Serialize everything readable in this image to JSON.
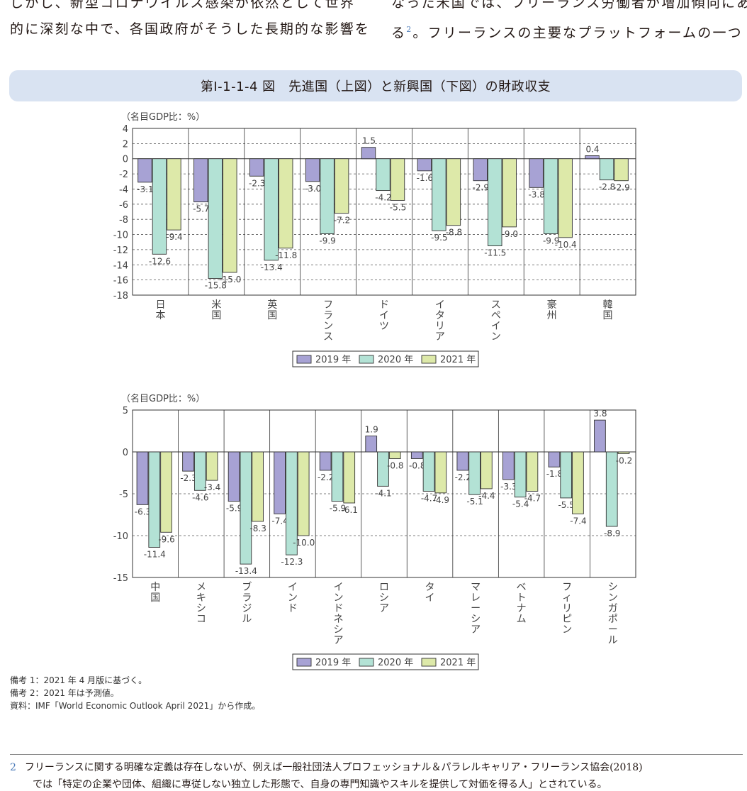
{
  "intro": {
    "left_lines": [
      "しかし、新型コロナウイルス感染が依然として世界",
      "的に深刻な中で、各国政府がそうした長期的な影響を"
    ],
    "right_line1": "なった米国では、フリーランス労働者が増加傾向にあ",
    "right_line2_pre": "る",
    "right_line2_sup": "2",
    "right_line2_post": "。フリーランスの主要なプラットフォームの一つ"
  },
  "figure_title": "第Ⅰ-1-1-4 図　先進国（上図）と新興国（下図）の財政収支",
  "colors": {
    "2019": "#a7a2d4",
    "2020": "#b3e2d5",
    "2021": "#dde9a9",
    "title_bg": "#d9e3f2"
  },
  "chart_data": [
    {
      "type": "bar",
      "ylabel": "（名目GDP比：%）",
      "ylim": [
        -18,
        4
      ],
      "yticks": [
        4,
        2,
        0,
        -2,
        -4,
        -6,
        -8,
        -10,
        -12,
        -14,
        -16,
        -18
      ],
      "grid": true,
      "categories": [
        "日本",
        "米国",
        "英国",
        "フランス",
        "ドイツ",
        "イタリア",
        "スペイン",
        "豪州",
        "韓国"
      ],
      "series": [
        {
          "name": "2019 年",
          "values": [
            -3.1,
            -5.7,
            -2.3,
            -3.0,
            1.5,
            -1.6,
            -2.9,
            -3.8,
            0.4
          ]
        },
        {
          "name": "2020 年",
          "values": [
            -12.6,
            -15.8,
            -13.4,
            -9.9,
            -4.2,
            -9.5,
            -11.5,
            -9.9,
            -2.8
          ]
        },
        {
          "name": "2021 年",
          "values": [
            -9.4,
            -15.0,
            -11.8,
            -7.2,
            -5.5,
            -8.8,
            -9.0,
            -10.4,
            -2.9
          ]
        }
      ],
      "legend": "bottom-center"
    },
    {
      "type": "bar",
      "ylabel": "（名目GDP比：%）",
      "ylim": [
        -15,
        5
      ],
      "yticks": [
        5,
        0,
        -5,
        -10,
        -15
      ],
      "grid": true,
      "categories": [
        "中国",
        "メキシコ",
        "ブラジル",
        "インド",
        "インドネシア",
        "ロシア",
        "タイ",
        "マレーシア",
        "ベトナム",
        "フィリピン",
        "シンガポール"
      ],
      "series": [
        {
          "name": "2019 年",
          "values": [
            -6.3,
            -2.3,
            -5.9,
            -7.4,
            -2.2,
            1.9,
            -0.8,
            -2.2,
            -3.3,
            -1.8,
            3.8
          ]
        },
        {
          "name": "2020 年",
          "values": [
            -11.4,
            -4.6,
            -13.4,
            -12.3,
            -5.9,
            -4.1,
            -4.7,
            -5.1,
            -5.4,
            -5.5,
            -8.9
          ]
        },
        {
          "name": "2021 年",
          "values": [
            -9.6,
            -3.4,
            -8.3,
            -10.0,
            -6.1,
            -0.8,
            -4.9,
            -4.4,
            -4.7,
            -7.4,
            -0.2
          ]
        }
      ],
      "legend": "bottom-center"
    }
  ],
  "notes": [
    "備考 1：2021 年 4 月版に基づく。",
    "備考 2：2021 年は予測値。",
    "資料：IMF「World Economic Outlook April 2021」から作成。"
  ],
  "footnote": {
    "number": "2",
    "line1": "フリーランスに関する明確な定義は存在しないが、例えば一般社団法人プロフェッショナル＆パラレルキャリア・フリーランス協会(2018)",
    "line2": "では「特定の企業や団体、組織に専従しない独立した形態で、自身の専門知識やスキルを提供して対価を得る人」とされている。"
  }
}
